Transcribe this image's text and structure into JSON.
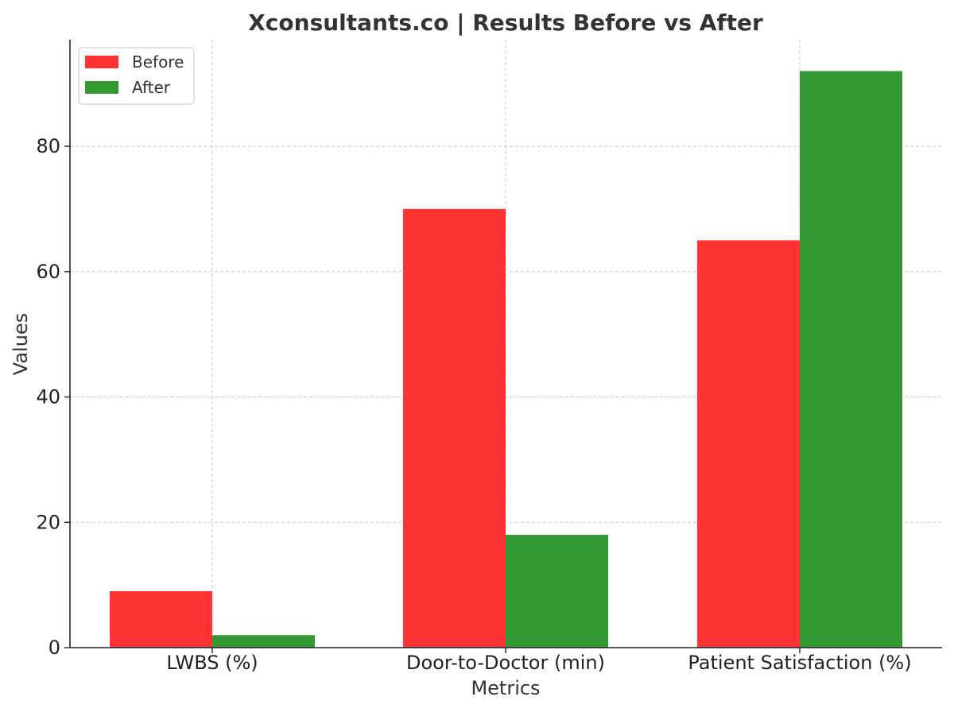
{
  "chart_data": {
    "type": "bar",
    "title": "Xconsultants.co | Results Before vs After",
    "xlabel": "Metrics",
    "ylabel": "Values",
    "categories": [
      "LWBS (%)",
      "Door-to-Doctor (min)",
      "Patient Satisfaction (%)"
    ],
    "series": [
      {
        "name": "Before",
        "color": "#ff3333",
        "values": [
          9,
          70,
          65
        ]
      },
      {
        "name": "After",
        "color": "#339933",
        "values": [
          2,
          18,
          92
        ]
      }
    ],
    "ylim": [
      0,
      97
    ],
    "yticks": [
      0,
      20,
      40,
      60,
      80
    ],
    "grid": true,
    "legend_position": "top-left"
  }
}
